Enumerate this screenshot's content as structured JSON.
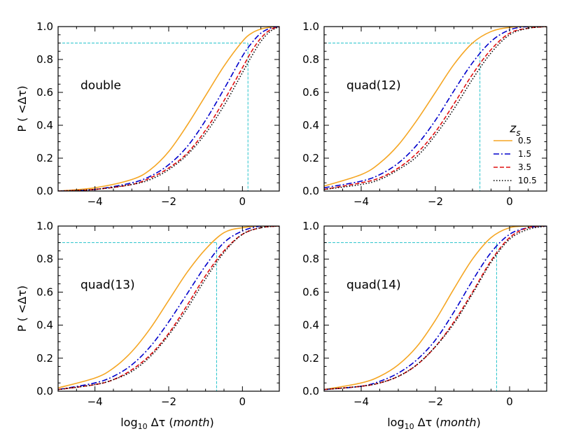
{
  "figure": {
    "ylabel": "P ( <Δτ)",
    "xlabel_prefix": "log",
    "xlabel_sub": "10",
    "xlabel_mid": " Δτ (",
    "xlabel_unit": "month",
    "xlabel_suffix": ")"
  },
  "colors": {
    "z0_5": "#f5a623",
    "z1_5": "#0000cc",
    "z3_5": "#e01010",
    "z10_5": "#000000",
    "reference": "#27c4cc"
  },
  "legend": {
    "title_base": "z",
    "title_sub": "s",
    "placement": "right-center",
    "entries": [
      {
        "label": "0.5",
        "color": "#f5a623",
        "dash": "solid"
      },
      {
        "label": "1.5",
        "color": "#0000cc",
        "dash": "dashdot"
      },
      {
        "label": "3.5",
        "color": "#e01010",
        "dash": "dashed"
      },
      {
        "label": "10.5",
        "color": "#000000",
        "dash": "dotted"
      }
    ]
  },
  "chart_data": [
    {
      "type": "line",
      "label": "double",
      "xlim": [
        -5,
        1
      ],
      "ylim": [
        0,
        1
      ],
      "xticks": [
        -4,
        -2,
        0
      ],
      "yticks": [
        0.0,
        0.2,
        0.4,
        0.6,
        0.8,
        1.0
      ],
      "reference": {
        "y": 0.9,
        "x": 0.15
      },
      "series": [
        {
          "name": "0.5",
          "color": "#f5a623",
          "dash": "solid",
          "x": [
            -5.0,
            -4.0,
            -3.0,
            -2.5,
            -2.0,
            -1.5,
            -1.0,
            -0.5,
            0.0,
            0.25,
            0.5,
            0.75,
            1.0
          ],
          "y": [
            0.0,
            0.02,
            0.07,
            0.13,
            0.24,
            0.4,
            0.58,
            0.76,
            0.91,
            0.96,
            0.985,
            0.996,
            1.0
          ]
        },
        {
          "name": "1.5",
          "color": "#0000cc",
          "dash": "dashdot",
          "x": [
            -5.0,
            -4.0,
            -3.0,
            -2.5,
            -2.0,
            -1.5,
            -1.0,
            -0.5,
            0.0,
            0.25,
            0.5,
            0.75,
            1.0
          ],
          "y": [
            0.0,
            0.01,
            0.05,
            0.09,
            0.16,
            0.27,
            0.43,
            0.62,
            0.82,
            0.9,
            0.96,
            0.99,
            1.0
          ]
        },
        {
          "name": "3.5",
          "color": "#e01010",
          "dash": "dashed",
          "x": [
            -5.0,
            -4.0,
            -3.0,
            -2.5,
            -2.0,
            -1.5,
            -1.0,
            -0.5,
            0.0,
            0.25,
            0.5,
            0.75,
            1.0
          ],
          "y": [
            0.0,
            0.01,
            0.04,
            0.08,
            0.14,
            0.23,
            0.37,
            0.55,
            0.75,
            0.85,
            0.93,
            0.98,
            1.0
          ]
        },
        {
          "name": "10.5",
          "color": "#000000",
          "dash": "dotted",
          "x": [
            -5.0,
            -4.0,
            -3.0,
            -2.5,
            -2.0,
            -1.5,
            -1.0,
            -0.5,
            0.0,
            0.25,
            0.5,
            0.75,
            1.0
          ],
          "y": [
            0.0,
            0.01,
            0.04,
            0.07,
            0.13,
            0.22,
            0.35,
            0.52,
            0.72,
            0.82,
            0.91,
            0.97,
            1.0
          ]
        }
      ]
    },
    {
      "type": "line",
      "label": "quad(12)",
      "xlim": [
        -5,
        1
      ],
      "ylim": [
        0,
        1
      ],
      "xticks": [
        -4,
        -2,
        0
      ],
      "yticks": [
        0.0,
        0.2,
        0.4,
        0.6,
        0.8,
        1.0
      ],
      "reference": {
        "y": 0.9,
        "x": -0.8
      },
      "series": [
        {
          "name": "0.5",
          "color": "#f5a623",
          "dash": "solid",
          "x": [
            -5.0,
            -4.0,
            -3.5,
            -3.0,
            -2.5,
            -2.0,
            -1.5,
            -1.0,
            -0.5,
            0.0,
            0.5,
            1.0
          ],
          "y": [
            0.03,
            0.1,
            0.17,
            0.28,
            0.43,
            0.6,
            0.77,
            0.9,
            0.97,
            0.995,
            1.0,
            1.0
          ]
        },
        {
          "name": "1.5",
          "color": "#0000cc",
          "dash": "dashdot",
          "x": [
            -5.0,
            -4.0,
            -3.5,
            -3.0,
            -2.5,
            -2.0,
            -1.5,
            -1.0,
            -0.5,
            0.0,
            0.5,
            1.0
          ],
          "y": [
            0.02,
            0.06,
            0.1,
            0.17,
            0.28,
            0.43,
            0.61,
            0.78,
            0.91,
            0.98,
            1.0,
            1.0
          ]
        },
        {
          "name": "3.5",
          "color": "#e01010",
          "dash": "dashed",
          "x": [
            -5.0,
            -4.0,
            -3.5,
            -3.0,
            -2.5,
            -2.0,
            -1.5,
            -1.0,
            -0.5,
            0.0,
            0.5,
            1.0
          ],
          "y": [
            0.01,
            0.05,
            0.08,
            0.14,
            0.23,
            0.36,
            0.53,
            0.71,
            0.86,
            0.96,
            0.99,
            1.0
          ]
        },
        {
          "name": "10.5",
          "color": "#000000",
          "dash": "dotted",
          "x": [
            -5.0,
            -4.0,
            -3.5,
            -3.0,
            -2.5,
            -2.0,
            -1.5,
            -1.0,
            -0.5,
            0.0,
            0.5,
            1.0
          ],
          "y": [
            0.01,
            0.04,
            0.07,
            0.13,
            0.21,
            0.34,
            0.5,
            0.68,
            0.84,
            0.95,
            0.99,
            1.0
          ]
        }
      ]
    },
    {
      "type": "line",
      "label": "quad(13)",
      "xlim": [
        -5,
        1
      ],
      "ylim": [
        0,
        1
      ],
      "xticks": [
        -4,
        -2,
        0
      ],
      "yticks": [
        0.0,
        0.2,
        0.4,
        0.6,
        0.8,
        1.0
      ],
      "reference": {
        "y": 0.9,
        "x": -0.7
      },
      "series": [
        {
          "name": "0.5",
          "color": "#f5a623",
          "dash": "solid",
          "x": [
            -5.0,
            -4.0,
            -3.5,
            -3.0,
            -2.5,
            -2.0,
            -1.5,
            -1.0,
            -0.5,
            0.0,
            0.5,
            1.0
          ],
          "y": [
            0.02,
            0.08,
            0.14,
            0.24,
            0.38,
            0.55,
            0.72,
            0.86,
            0.96,
            0.99,
            1.0,
            1.0
          ]
        },
        {
          "name": "1.5",
          "color": "#0000cc",
          "dash": "dashdot",
          "x": [
            -5.0,
            -4.0,
            -3.5,
            -3.0,
            -2.5,
            -2.0,
            -1.5,
            -1.0,
            -0.5,
            0.0,
            0.5,
            1.0
          ],
          "y": [
            0.01,
            0.05,
            0.09,
            0.16,
            0.27,
            0.42,
            0.59,
            0.76,
            0.9,
            0.97,
            1.0,
            1.0
          ]
        },
        {
          "name": "3.5",
          "color": "#e01010",
          "dash": "dashed",
          "x": [
            -5.0,
            -4.0,
            -3.5,
            -3.0,
            -2.5,
            -2.0,
            -1.5,
            -1.0,
            -0.5,
            0.0,
            0.5,
            1.0
          ],
          "y": [
            0.01,
            0.04,
            0.07,
            0.13,
            0.22,
            0.35,
            0.52,
            0.7,
            0.85,
            0.95,
            0.99,
            1.0
          ]
        },
        {
          "name": "10.5",
          "color": "#000000",
          "dash": "dotted",
          "x": [
            -5.0,
            -4.0,
            -3.5,
            -3.0,
            -2.5,
            -2.0,
            -1.5,
            -1.0,
            -0.5,
            0.0,
            0.5,
            1.0
          ],
          "y": [
            0.01,
            0.04,
            0.07,
            0.12,
            0.21,
            0.34,
            0.5,
            0.68,
            0.84,
            0.95,
            0.99,
            1.0
          ]
        }
      ]
    },
    {
      "type": "line",
      "label": "quad(14)",
      "xlim": [
        -5,
        1
      ],
      "ylim": [
        0,
        1
      ],
      "xticks": [
        -4,
        -2,
        0
      ],
      "yticks": [
        0.0,
        0.2,
        0.4,
        0.6,
        0.8,
        1.0
      ],
      "reference": {
        "y": 0.9,
        "x": -0.35
      },
      "series": [
        {
          "name": "0.5",
          "color": "#f5a623",
          "dash": "solid",
          "x": [
            -5.0,
            -4.0,
            -3.5,
            -3.0,
            -2.5,
            -2.0,
            -1.5,
            -1.0,
            -0.5,
            0.0,
            0.5,
            1.0
          ],
          "y": [
            0.01,
            0.05,
            0.09,
            0.16,
            0.27,
            0.43,
            0.62,
            0.8,
            0.93,
            0.99,
            1.0,
            1.0
          ]
        },
        {
          "name": "1.5",
          "color": "#0000cc",
          "dash": "dashdot",
          "x": [
            -5.0,
            -4.0,
            -3.5,
            -3.0,
            -2.5,
            -2.0,
            -1.5,
            -1.0,
            -0.5,
            0.0,
            0.5,
            1.0
          ],
          "y": [
            0.01,
            0.03,
            0.06,
            0.11,
            0.19,
            0.31,
            0.48,
            0.67,
            0.84,
            0.95,
            0.99,
            1.0
          ]
        },
        {
          "name": "3.5",
          "color": "#e01010",
          "dash": "dashed",
          "x": [
            -5.0,
            -4.0,
            -3.5,
            -3.0,
            -2.5,
            -2.0,
            -1.5,
            -1.0,
            -0.5,
            0.0,
            0.5,
            1.0
          ],
          "y": [
            0.01,
            0.03,
            0.05,
            0.09,
            0.16,
            0.27,
            0.42,
            0.6,
            0.79,
            0.93,
            0.99,
            1.0
          ]
        },
        {
          "name": "10.5",
          "color": "#000000",
          "dash": "dotted",
          "x": [
            -5.0,
            -4.0,
            -3.5,
            -3.0,
            -2.5,
            -2.0,
            -1.5,
            -1.0,
            -0.5,
            0.0,
            0.5,
            1.0
          ],
          "y": [
            0.01,
            0.03,
            0.05,
            0.09,
            0.16,
            0.27,
            0.41,
            0.59,
            0.78,
            0.92,
            0.98,
            1.0
          ]
        }
      ]
    }
  ]
}
